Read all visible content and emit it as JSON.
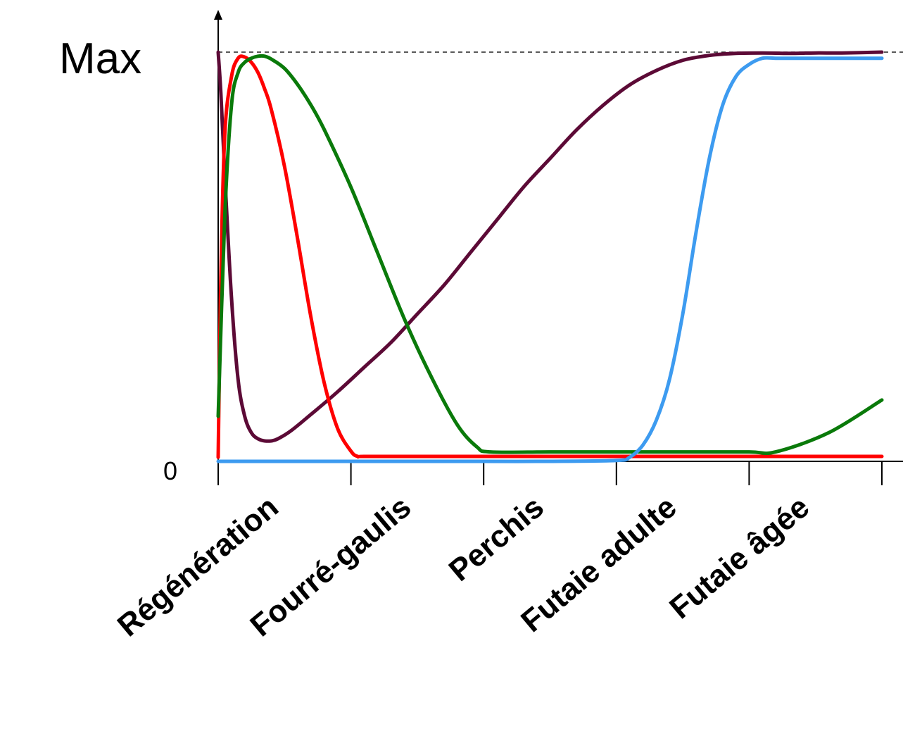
{
  "chart_data": {
    "type": "line",
    "xlabel": "",
    "ylabel": "",
    "xlim": [
      0,
      5
    ],
    "ylim": [
      0,
      1
    ],
    "y_tick_labels": {
      "top": "Max",
      "bottom": "0"
    },
    "stages": [
      "Régénération",
      "Fourré-gaulis",
      "Perchis",
      "Futaie adulte",
      "Futaie âgée"
    ],
    "max_reference_line": {
      "y": 1.0,
      "style": "dashed"
    },
    "grid": false,
    "legend": "none",
    "series": [
      {
        "color": "#5c0a36",
        "x": [
          0,
          0.02,
          0.05,
          0.1,
          0.15,
          0.2,
          0.25,
          0.3,
          0.35,
          0.4,
          0.45,
          0.55,
          0.7,
          0.9,
          1.1,
          1.3,
          1.5,
          1.7,
          1.9,
          2.1,
          2.3,
          2.5,
          2.7,
          2.9,
          3.1,
          3.3,
          3.5,
          3.7,
          3.9,
          4.1,
          4.3,
          4.5,
          4.7,
          5.0
        ],
        "y": [
          1.0,
          0.9,
          0.7,
          0.4,
          0.2,
          0.11,
          0.07,
          0.055,
          0.05,
          0.05,
          0.055,
          0.075,
          0.115,
          0.17,
          0.23,
          0.29,
          0.36,
          0.43,
          0.51,
          0.59,
          0.67,
          0.74,
          0.81,
          0.87,
          0.92,
          0.955,
          0.98,
          0.992,
          0.997,
          0.998,
          0.997,
          0.998,
          0.998,
          1.0
        ]
      },
      {
        "color": "#ff0000",
        "x": [
          0,
          0.02,
          0.05,
          0.1,
          0.15,
          0.2,
          0.25,
          0.3,
          0.35,
          0.4,
          0.5,
          0.6,
          0.7,
          0.8,
          0.9,
          1.0,
          1.05,
          1.1,
          1.5,
          2.0,
          2.5,
          3.0,
          3.5,
          4.0,
          4.5,
          5.0
        ],
        "y": [
          0.01,
          0.45,
          0.8,
          0.94,
          0.985,
          0.988,
          0.975,
          0.95,
          0.91,
          0.86,
          0.72,
          0.54,
          0.35,
          0.19,
          0.08,
          0.025,
          0.012,
          0.012,
          0.012,
          0.012,
          0.012,
          0.012,
          0.012,
          0.012,
          0.012,
          0.012
        ]
      },
      {
        "color": "#0a7a0a",
        "x": [
          0,
          0.05,
          0.1,
          0.15,
          0.2,
          0.25,
          0.3,
          0.35,
          0.4,
          0.5,
          0.6,
          0.7,
          0.8,
          1.0,
          1.2,
          1.4,
          1.6,
          1.8,
          1.95,
          2.05,
          2.5,
          3.0,
          3.5,
          4.0,
          4.2,
          4.6,
          5.0
        ],
        "y": [
          0.11,
          0.6,
          0.87,
          0.95,
          0.975,
          0.985,
          0.99,
          0.99,
          0.983,
          0.96,
          0.92,
          0.87,
          0.81,
          0.67,
          0.51,
          0.35,
          0.21,
          0.09,
          0.035,
          0.023,
          0.023,
          0.023,
          0.023,
          0.023,
          0.023,
          0.07,
          0.15
        ]
      },
      {
        "color": "#3d9bf0",
        "x": [
          0,
          0.5,
          1.0,
          1.5,
          2.0,
          2.5,
          3.0,
          3.1,
          3.2,
          3.3,
          3.4,
          3.5,
          3.6,
          3.7,
          3.8,
          3.9,
          4.0,
          4.1,
          4.2,
          4.3,
          4.5,
          5.0
        ],
        "y": [
          0.0,
          0.0,
          0.0,
          0.0,
          0.0,
          0.0,
          0.002,
          0.01,
          0.04,
          0.1,
          0.2,
          0.36,
          0.56,
          0.74,
          0.87,
          0.94,
          0.97,
          0.985,
          0.985,
          0.985,
          0.985,
          0.985
        ]
      }
    ]
  }
}
